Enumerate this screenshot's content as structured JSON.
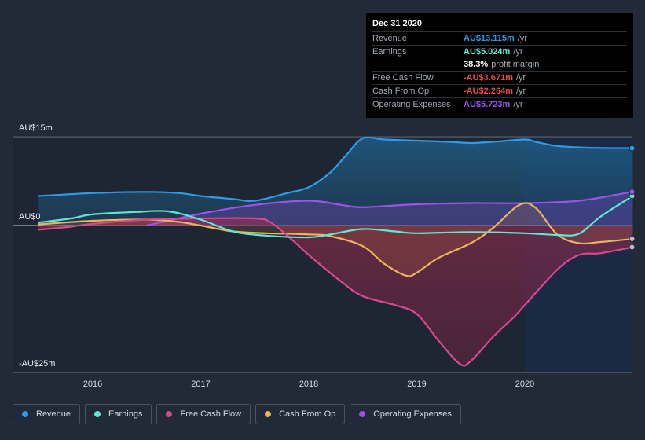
{
  "chart_data": {
    "type": "area",
    "y_axis_labels": {
      "top": "AU$15m",
      "zero": "AU$0",
      "bottom": "-AU$25m"
    },
    "ylim": [
      -25,
      15
    ],
    "x_ticks": [
      "2016",
      "2017",
      "2018",
      "2019",
      "2020"
    ],
    "x_range": [
      2015.5,
      2021.0
    ],
    "forecast_start": 2020.0,
    "series": [
      {
        "name": "Revenue",
        "color": "#2d9ce8",
        "points": [
          [
            2015.5,
            5
          ],
          [
            2016.0,
            5.5
          ],
          [
            2016.5,
            5.7
          ],
          [
            2016.8,
            5.5
          ],
          [
            2017.0,
            5.0
          ],
          [
            2017.3,
            4.5
          ],
          [
            2017.5,
            4.2
          ],
          [
            2017.8,
            5.5
          ],
          [
            2018.0,
            6.5
          ],
          [
            2018.2,
            9.0
          ],
          [
            2018.35,
            12.0
          ],
          [
            2018.5,
            14.8
          ],
          [
            2018.7,
            14.6
          ],
          [
            2019.0,
            14.4
          ],
          [
            2019.3,
            14.2
          ],
          [
            2019.5,
            14.0
          ],
          [
            2019.7,
            14.2
          ],
          [
            2020.0,
            14.6
          ],
          [
            2020.1,
            14.2
          ],
          [
            2020.3,
            13.5
          ],
          [
            2020.6,
            13.2
          ],
          [
            2021.0,
            13.115
          ]
        ]
      },
      {
        "name": "Earnings",
        "color": "#5ee8d4",
        "points": [
          [
            2015.5,
            0.5
          ],
          [
            2015.8,
            1.2
          ],
          [
            2016.0,
            1.9
          ],
          [
            2016.4,
            2.3
          ],
          [
            2016.7,
            2.4
          ],
          [
            2017.0,
            1.0
          ],
          [
            2017.3,
            -1.0
          ],
          [
            2017.6,
            -1.7
          ],
          [
            2018.0,
            -2.0
          ],
          [
            2018.2,
            -1.5
          ],
          [
            2018.5,
            -0.6
          ],
          [
            2018.8,
            -1.0
          ],
          [
            2019.0,
            -1.3
          ],
          [
            2019.5,
            -1.1
          ],
          [
            2020.0,
            -1.3
          ],
          [
            2020.3,
            -1.6
          ],
          [
            2020.5,
            -1.4
          ],
          [
            2020.7,
            1.5
          ],
          [
            2021.0,
            5.024
          ]
        ]
      },
      {
        "name": "Free Cash Flow",
        "color": "#d54a8c",
        "points": [
          [
            2015.5,
            -0.7
          ],
          [
            2015.8,
            -0.2
          ],
          [
            2016.0,
            0.3
          ],
          [
            2016.5,
            1.0
          ],
          [
            2017.0,
            1.2
          ],
          [
            2017.5,
            1.2
          ],
          [
            2017.65,
            0.5
          ],
          [
            2017.85,
            -2.5
          ],
          [
            2018.0,
            -5.0
          ],
          [
            2018.3,
            -9.5
          ],
          [
            2018.5,
            -12.0
          ],
          [
            2018.8,
            -13.5
          ],
          [
            2019.0,
            -15.0
          ],
          [
            2019.2,
            -19.5
          ],
          [
            2019.4,
            -23.5
          ],
          [
            2019.5,
            -23.0
          ],
          [
            2019.7,
            -19.0
          ],
          [
            2019.9,
            -15.5
          ],
          [
            2020.0,
            -13.5
          ],
          [
            2020.3,
            -7.5
          ],
          [
            2020.5,
            -5.0
          ],
          [
            2020.7,
            -4.7
          ],
          [
            2021.0,
            -3.671
          ]
        ]
      },
      {
        "name": "Cash From Op",
        "color": "#ebb45c",
        "points": [
          [
            2015.5,
            0.2
          ],
          [
            2016.0,
            0.8
          ],
          [
            2016.5,
            1.0
          ],
          [
            2016.8,
            0.6
          ],
          [
            2017.0,
            0.0
          ],
          [
            2017.3,
            -1.0
          ],
          [
            2017.6,
            -1.3
          ],
          [
            2018.0,
            -1.5
          ],
          [
            2018.2,
            -1.8
          ],
          [
            2018.5,
            -3.5
          ],
          [
            2018.7,
            -6.5
          ],
          [
            2018.9,
            -8.5
          ],
          [
            2019.0,
            -8.0
          ],
          [
            2019.2,
            -5.5
          ],
          [
            2019.5,
            -3.0
          ],
          [
            2019.7,
            -0.5
          ],
          [
            2019.95,
            3.5
          ],
          [
            2020.1,
            3.0
          ],
          [
            2020.3,
            -1.5
          ],
          [
            2020.5,
            -3.0
          ],
          [
            2020.7,
            -2.8
          ],
          [
            2021.0,
            -2.264
          ]
        ]
      },
      {
        "name": "Operating Expenses",
        "color": "#9e52e8",
        "points": [
          [
            2016.5,
            0.0
          ],
          [
            2017.0,
            2.0
          ],
          [
            2017.5,
            3.5
          ],
          [
            2018.0,
            4.2
          ],
          [
            2018.3,
            3.5
          ],
          [
            2018.5,
            3.1
          ],
          [
            2019.0,
            3.6
          ],
          [
            2019.5,
            3.8
          ],
          [
            2020.0,
            3.8
          ],
          [
            2020.5,
            4.2
          ],
          [
            2021.0,
            5.723
          ]
        ]
      }
    ],
    "tooltip": {
      "date": "Dec 31 2020",
      "rows": [
        {
          "label": "Revenue",
          "value": "AU$13.115m",
          "unit": "/yr",
          "color": "#2d9ce8"
        },
        {
          "label": "Earnings",
          "value": "AU$5.024m",
          "unit": "/yr",
          "color": "#5ee8d4"
        },
        {
          "label": "",
          "value": "38.3%",
          "unit": "profit margin",
          "color": "#ffffff"
        },
        {
          "label": "Free Cash Flow",
          "value": "-AU$3.671m",
          "unit": "/yr",
          "color": "#e84a4a"
        },
        {
          "label": "Cash From Op",
          "value": "-AU$2.264m",
          "unit": "/yr",
          "color": "#e84a4a"
        },
        {
          "label": "Operating Expenses",
          "value": "AU$5.723m",
          "unit": "/yr",
          "color": "#9e52e8"
        }
      ]
    }
  },
  "legend": [
    {
      "label": "Revenue",
      "color": "#2d9ce8"
    },
    {
      "label": "Earnings",
      "color": "#5ee8d4"
    },
    {
      "label": "Free Cash Flow",
      "color": "#d54a8c"
    },
    {
      "label": "Cash From Op",
      "color": "#ebb45c"
    },
    {
      "label": "Operating Expenses",
      "color": "#9e52e8"
    }
  ]
}
